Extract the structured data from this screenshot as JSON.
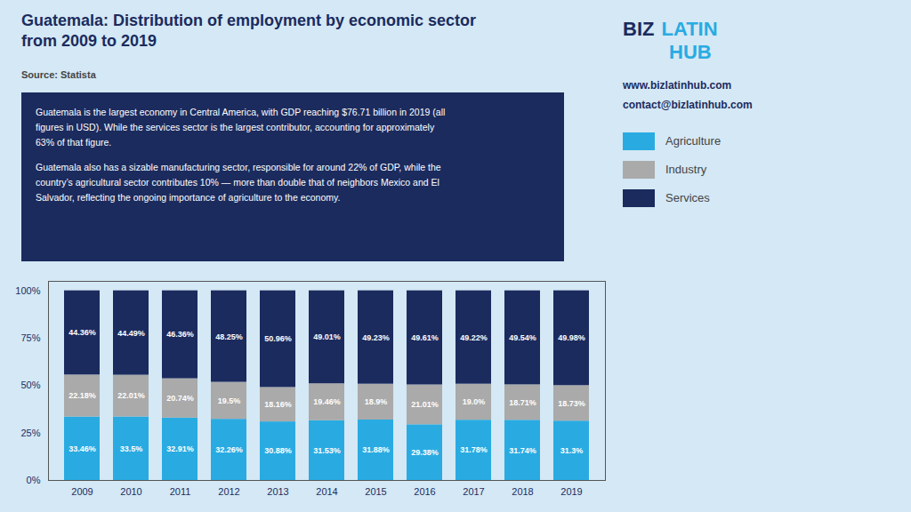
{
  "chart_data": {
    "type": "bar",
    "stacked": true,
    "title": "Guatemala: Distribution of employment by economic sector",
    "subtitle": "from 2009 to 2019",
    "annotations": [
      "Source: Statista",
      "Guatemala is the largest economy in Central America, with GDP reaching $76.71 billion in 2019 (all\nfigures in USD). While the services sector is the largest contributor, accounting for approximately\n63% of that figure.",
      "Guatemala also has a sizable manufacturing sector, responsible for around 22% of GDP, while the\ncountry’s agricultural sector contributes 10% — more than double that of neighbors Mexico and El\nSalvador, reflecting the ongoing importance of agriculture to the economy.",
      "BIZ",
      "LATIN",
      "HUB",
      "www.bizlatinhub.com",
      "contact@bizlatinhub.com"
    ],
    "categories": [
      "2009",
      "2010",
      "2011",
      "2012",
      "2013",
      "2014",
      "2015",
      "2016",
      "2017",
      "2018",
      "2019"
    ],
    "series": [
      {
        "name": "Agriculture",
        "color": "#29ABE2",
        "values": [
          33.46,
          33.5,
          32.91,
          32.26,
          30.88,
          31.53,
          31.88,
          29.38,
          31.78,
          31.74,
          31.3
        ],
        "value_labels": [
          "33.46%",
          "33.5%",
          "32.91%",
          "32.26%",
          "30.88%",
          "31.53%",
          "31.88%",
          "29.38%",
          "31.78%",
          "31.74%",
          "31.3%"
        ]
      },
      {
        "name": "Industry",
        "color": "#AAAAAA",
        "values": [
          22.18,
          22.01,
          20.74,
          19.5,
          18.16,
          19.46,
          18.9,
          21.01,
          19.0,
          18.71,
          18.73
        ],
        "value_labels": [
          "22.18%",
          "22.01%",
          "20.74%",
          "19.5%",
          "18.16%",
          "19.46%",
          "18.9%",
          "21.01%",
          "19.0%",
          "18.71%",
          "18.73%"
        ]
      },
      {
        "name": "Services",
        "color": "#1B2B5E",
        "values": [
          44.36,
          44.49,
          46.36,
          48.25,
          50.96,
          49.01,
          49.23,
          49.61,
          49.22,
          49.54,
          49.98
        ],
        "value_labels": [
          "44.36%",
          "44.49%",
          "46.36%",
          "48.25%",
          "50.96%",
          "49.01%",
          "49.23%",
          "49.61%",
          "49.22%",
          "49.54%",
          "49.98%"
        ]
      }
    ],
    "ylim": [
      0,
      105
    ],
    "yticks": [
      {
        "value": 0,
        "label": "0%"
      },
      {
        "value": 25,
        "label": "25%"
      },
      {
        "value": 50,
        "label": "50%"
      },
      {
        "value": 75,
        "label": "75%"
      },
      {
        "value": 100,
        "label": "100%"
      }
    ],
    "grid": false,
    "legend": "right",
    "data_labels": true
  }
}
